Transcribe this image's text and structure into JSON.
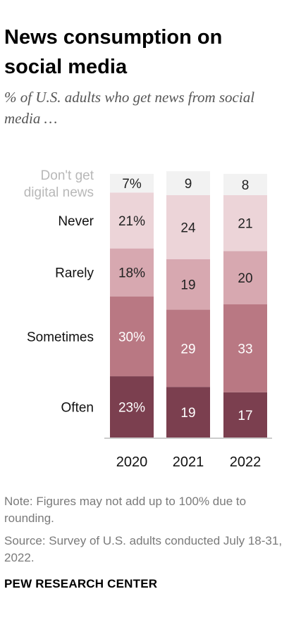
{
  "title": "News consumption on social media",
  "subtitle": "% of U.S. adults who get news from social media …",
  "note": "Note: Figures may not add up to 100% due to rounding.",
  "source": "Source: Survey of U.S. adults conducted July 18-31, 2022.",
  "brand": "PEW RESEARCH CENTER",
  "chart_data": {
    "type": "bar",
    "stacked": true,
    "categories": [
      "2020",
      "2021",
      "2022"
    ],
    "series": [
      {
        "name": "Often",
        "values": [
          23,
          19,
          17
        ],
        "labels": [
          "23%",
          "19",
          "17"
        ],
        "color": "#7b3f4f",
        "text_color": "#ffffff"
      },
      {
        "name": "Sometimes",
        "values": [
          30,
          29,
          33
        ],
        "labels": [
          "30%",
          "29",
          "33"
        ],
        "color": "#b97883",
        "text_color": "#ffffff"
      },
      {
        "name": "Rarely",
        "values": [
          18,
          19,
          20
        ],
        "labels": [
          "18%",
          "19",
          "20"
        ],
        "color": "#d7a8b0",
        "text_color": "#222222"
      },
      {
        "name": "Never",
        "values": [
          21,
          24,
          21
        ],
        "labels": [
          "21%",
          "24",
          "21"
        ],
        "color": "#ecd4d8",
        "text_color": "#222222"
      },
      {
        "name": "Don't get digital news",
        "values": [
          7,
          9,
          8
        ],
        "labels": [
          "7%",
          "9",
          "8"
        ],
        "color": "#f2f2f2",
        "text_color": "#222222",
        "legend_color": "#b8b8b8"
      }
    ],
    "ylim": [
      0,
      100
    ],
    "grid": false,
    "legend": "left"
  }
}
